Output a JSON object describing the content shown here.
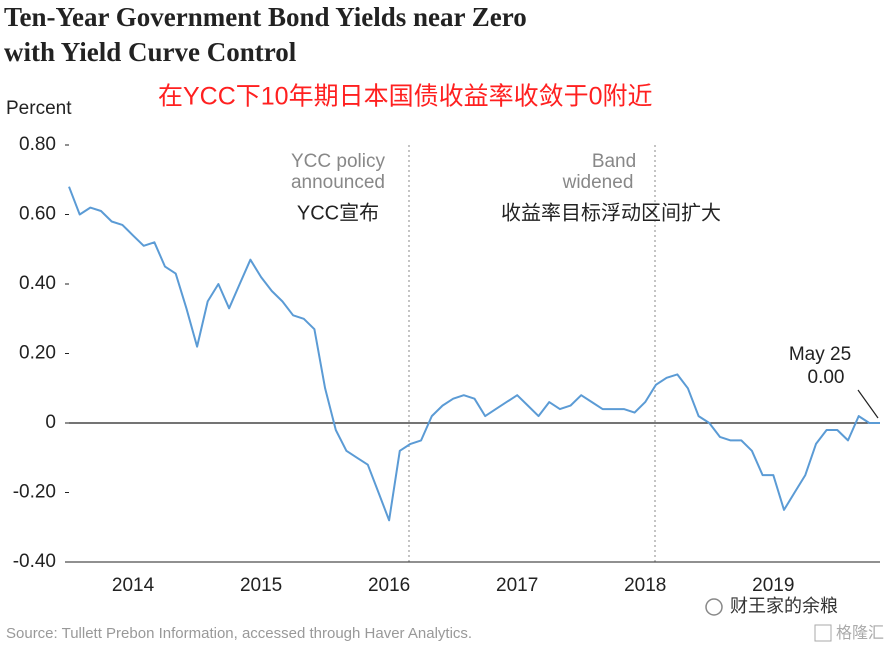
{
  "chart_data": {
    "type": "line",
    "title": [
      "Ten-Year Government Bond Yields near Zero",
      "with Yield Curve Control"
    ],
    "subtitle": "在YCC下10年期日本国债收益率收敛于0附近",
    "ylabel": "Percent",
    "categories": [
      null,
      null,
      null,
      null,
      null,
      null,
      "2014",
      null,
      null,
      null,
      null,
      null,
      null,
      null,
      null,
      null,
      null,
      null,
      "2015",
      null,
      null,
      null,
      null,
      null,
      null,
      null,
      null,
      null,
      null,
      null,
      "2016",
      null,
      null,
      null,
      null,
      null,
      null,
      null,
      null,
      null,
      null,
      null,
      "2017",
      null,
      null,
      null,
      null,
      null,
      null,
      null,
      null,
      null,
      null,
      null,
      "2018",
      null,
      null,
      null,
      null,
      null,
      null,
      null,
      null,
      null,
      null,
      null,
      "2019",
      null,
      null,
      null,
      null,
      null,
      null,
      null,
      null,
      null,
      null
    ],
    "series": [
      {
        "name": "Ten-Year Government Bond Yield",
        "color": "#5b9bd5",
        "values": [
          0.68,
          0.6,
          0.62,
          0.61,
          0.58,
          0.57,
          0.54,
          0.51,
          0.52,
          0.45,
          0.43,
          0.33,
          0.22,
          0.35,
          0.4,
          0.33,
          0.4,
          0.47,
          0.42,
          0.38,
          0.35,
          0.31,
          0.3,
          0.27,
          0.1,
          -0.02,
          -0.08,
          -0.1,
          -0.12,
          -0.2,
          -0.28,
          -0.08,
          -0.06,
          -0.05,
          0.02,
          0.05,
          0.07,
          0.08,
          0.07,
          0.02,
          0.04,
          0.06,
          0.08,
          0.05,
          0.02,
          0.06,
          0.04,
          0.05,
          0.08,
          0.06,
          0.04,
          0.04,
          0.04,
          0.03,
          0.06,
          0.11,
          0.13,
          0.14,
          0.1,
          0.02,
          0.0,
          -0.04,
          -0.05,
          -0.05,
          -0.08,
          -0.15,
          -0.15,
          -0.25,
          -0.2,
          -0.15,
          -0.06,
          -0.02,
          -0.02,
          -0.05,
          0.02,
          0.0,
          0.0
        ]
      }
    ],
    "ylim": [
      -0.4,
      0.8
    ],
    "yticks": [
      {
        "value": 0.8,
        "label": "0.80"
      },
      {
        "value": 0.6,
        "label": "0.60"
      },
      {
        "value": 0.4,
        "label": "0.40"
      },
      {
        "value": 0.2,
        "label": "0.20"
      },
      0,
      {
        "value": -0.2,
        "label": "-0.20"
      },
      {
        "value": -0.4,
        "label": "-0.40"
      }
    ],
    "annotations": [
      "YCC policy",
      "announced",
      "YCC宣布",
      "Band",
      "widened",
      "收益率目标浮动区间扩大",
      "May 25",
      "0.00"
    ],
    "source": "Source: Tullett Prebon Information, accessed through Haver Analytics.",
    "watermark": "财王家的余粮",
    "logo": "格隆汇"
  }
}
